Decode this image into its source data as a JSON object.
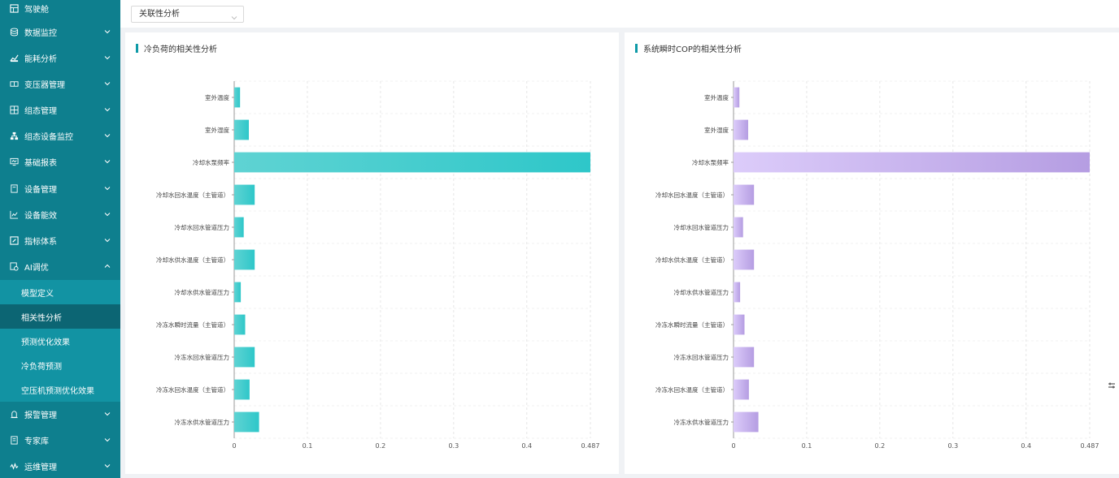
{
  "sidebar": {
    "items": [
      {
        "label": "驾驶舱",
        "icon": "cockpit-icon",
        "chevron": false
      },
      {
        "label": "数据监控",
        "icon": "database-icon",
        "chevron": true
      },
      {
        "label": "能耗分析",
        "icon": "trend-chart-icon",
        "chevron": true
      },
      {
        "label": "变压器管理",
        "icon": "transformer-icon",
        "chevron": true
      },
      {
        "label": "组态管理",
        "icon": "grid-icon",
        "chevron": true
      },
      {
        "label": "组态设备监控",
        "icon": "network-icon",
        "chevron": true
      },
      {
        "label": "基础报表",
        "icon": "report-icon",
        "chevron": true
      },
      {
        "label": "设备管理",
        "icon": "device-icon",
        "chevron": true
      },
      {
        "label": "设备能效",
        "icon": "line-chart-icon",
        "chevron": true
      },
      {
        "label": "指标体系",
        "icon": "edit-icon",
        "chevron": true
      },
      {
        "label": "AI调优",
        "icon": "ai-tune-icon",
        "chevron": true,
        "expanded": true
      }
    ],
    "sub_items": [
      {
        "label": "模型定义",
        "active": false
      },
      {
        "label": "相关性分析",
        "active": true
      },
      {
        "label": "预测优化效果",
        "active": false
      },
      {
        "label": "冷负荷预测",
        "active": false
      },
      {
        "label": "空压机预测优化效果",
        "active": false
      }
    ],
    "items_after": [
      {
        "label": "报警管理",
        "icon": "alarm-icon",
        "chevron": true
      },
      {
        "label": "专家库",
        "icon": "book-icon",
        "chevron": true
      },
      {
        "label": "运维管理",
        "icon": "wave-icon",
        "chevron": true
      }
    ]
  },
  "toolbar": {
    "select_value": "关联性分析"
  },
  "colors": {
    "sidebar_bg": "#0e7f8e",
    "accent": "#0e9aa7",
    "teal_bar": "#3ccfcf",
    "purple_bar": "#c3aeea"
  },
  "chart_data": [
    {
      "type": "bar",
      "orientation": "horizontal",
      "title": "冷负荷的相关性分析",
      "categories": [
        "室外温度",
        "室外湿度",
        "冷却水泵频率",
        "冷却水回水温度（主管道）",
        "冷却水回水管道压力",
        "冷却水供水温度（主管道）",
        "冷却水供水管道压力",
        "冷冻水瞬时流量（主管道）",
        "冷冻水回水管道压力",
        "冷冻水回水温度（主管道）",
        "冷冻水供水管道压力"
      ],
      "values": [
        0.008,
        0.02,
        0.487,
        0.028,
        0.013,
        0.028,
        0.009,
        0.015,
        0.028,
        0.021,
        0.034
      ],
      "xlim": [
        0,
        0.487
      ],
      "xticks": [
        "0",
        "0.1",
        "0.2",
        "0.3",
        "0.4",
        "0.487"
      ],
      "grid": true,
      "color": "#3ccfcf"
    },
    {
      "type": "bar",
      "orientation": "horizontal",
      "title": "系统瞬时COP的相关性分析",
      "categories": [
        "室外温度",
        "室外湿度",
        "冷却水泵频率",
        "冷却水回水温度（主管道）",
        "冷却水回水管道压力",
        "冷却水供水温度（主管道）",
        "冷却水供水管道压力",
        "冷冻水瞬时流量（主管道）",
        "冷冻水回水管道压力",
        "冷冻水回水温度（主管道）",
        "冷冻水供水管道压力"
      ],
      "values": [
        0.008,
        0.02,
        0.487,
        0.028,
        0.013,
        0.028,
        0.009,
        0.015,
        0.028,
        0.021,
        0.034
      ],
      "xlim": [
        0,
        0.487
      ],
      "xticks": [
        "0",
        "0.1",
        "0.2",
        "0.3",
        "0.4",
        "0.487"
      ],
      "grid": true,
      "color": "#c3aeea"
    }
  ]
}
